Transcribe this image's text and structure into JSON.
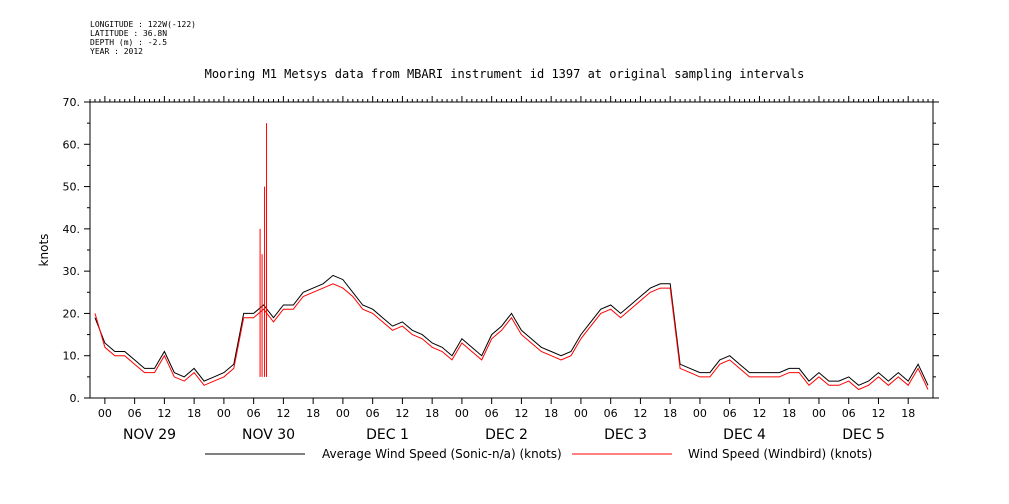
{
  "header": {
    "meta_lines": [
      "LONGITUDE : 122W(-122)",
      "LATITUDE : 36.8N",
      "DEPTH (m) : -2.5",
      "YEAR : 2012"
    ]
  },
  "chart_data": {
    "type": "line",
    "title": "Mooring M1 Metsys data from MBARI instrument id 1397 at original sampling intervals",
    "ylabel": "knots",
    "xlabel": "",
    "ylim": [
      0,
      70
    ],
    "yticks": [
      0,
      10,
      20,
      30,
      40,
      50,
      60,
      70
    ],
    "xlim_hours": [
      -15,
      155
    ],
    "x_hour_ticks": [
      "00",
      "06",
      "12",
      "18",
      "00",
      "06",
      "12",
      "18",
      "00",
      "06",
      "12",
      "18",
      "00",
      "06",
      "12",
      "18",
      "00",
      "06",
      "12",
      "18",
      "00",
      "06",
      "12",
      "18",
      "00",
      "06",
      "12",
      "18"
    ],
    "day_labels": [
      "NOV 29",
      "NOV 30",
      "DEC  1",
      "DEC  2",
      "DEC  3",
      "DEC  4",
      "DEC  5"
    ],
    "grid": false,
    "legend_position": "bottom",
    "colors": {
      "sonic": "#000000",
      "windbird": "#ff0000"
    },
    "x_hours": [
      -14,
      -12,
      -10,
      -8,
      -6,
      -4,
      -2,
      0,
      2,
      4,
      6,
      8,
      10,
      12,
      14,
      16,
      18,
      20,
      22,
      24,
      26,
      28,
      30,
      32,
      34,
      36,
      38,
      40,
      42,
      44,
      46,
      48,
      50,
      52,
      54,
      56,
      58,
      60,
      62,
      64,
      66,
      68,
      70,
      72,
      74,
      76,
      78,
      80,
      82,
      84,
      86,
      88,
      90,
      92,
      94,
      96,
      98,
      100,
      102,
      104,
      106,
      108,
      110,
      112,
      114,
      116,
      118,
      120,
      122,
      124,
      126,
      128,
      130,
      132,
      134,
      136,
      138,
      140,
      142,
      144,
      146,
      148,
      150,
      152,
      154
    ],
    "series": [
      {
        "name": "Average Wind Speed (Sonic-n/a) (knots)",
        "values": [
          19,
          13,
          11,
          11,
          9,
          7,
          7,
          11,
          6,
          5,
          7,
          4,
          5,
          6,
          8,
          20,
          20,
          22,
          19,
          22,
          22,
          25,
          26,
          27,
          29,
          28,
          25,
          22,
          21,
          19,
          17,
          18,
          16,
          15,
          13,
          12,
          10,
          14,
          12,
          10,
          15,
          17,
          20,
          16,
          14,
          12,
          11,
          10,
          11,
          15,
          18,
          21,
          22,
          20,
          22,
          24,
          26,
          27,
          27,
          8,
          7,
          6,
          6,
          9,
          10,
          8,
          6,
          6,
          6,
          6,
          7,
          7,
          4,
          6,
          4,
          4,
          5,
          3,
          4,
          6,
          4,
          6,
          4,
          8,
          3
        ]
      },
      {
        "name": "Wind Speed (Windbird) (knots)",
        "values": [
          20,
          12,
          10,
          10,
          8,
          6,
          6,
          10,
          5,
          4,
          6,
          3,
          4,
          5,
          7,
          19,
          19,
          21,
          18,
          21,
          21,
          24,
          25,
          26,
          27,
          26,
          24,
          21,
          20,
          18,
          16,
          17,
          15,
          14,
          12,
          11,
          9,
          13,
          11,
          9,
          14,
          16,
          19,
          15,
          13,
          11,
          10,
          9,
          10,
          14,
          17,
          20,
          21,
          19,
          21,
          23,
          25,
          26,
          26,
          7,
          6,
          5,
          5,
          8,
          9,
          7,
          5,
          5,
          5,
          5,
          6,
          6,
          3,
          5,
          3,
          3,
          4,
          2,
          3,
          5,
          3,
          5,
          3,
          7,
          2
        ]
      }
    ],
    "spikes_windbird": [
      {
        "x": 19.3,
        "value": 40
      },
      {
        "x": 19.7,
        "value": 34
      },
      {
        "x": 20.2,
        "value": 50
      },
      {
        "x": 20.6,
        "value": 65
      }
    ]
  }
}
